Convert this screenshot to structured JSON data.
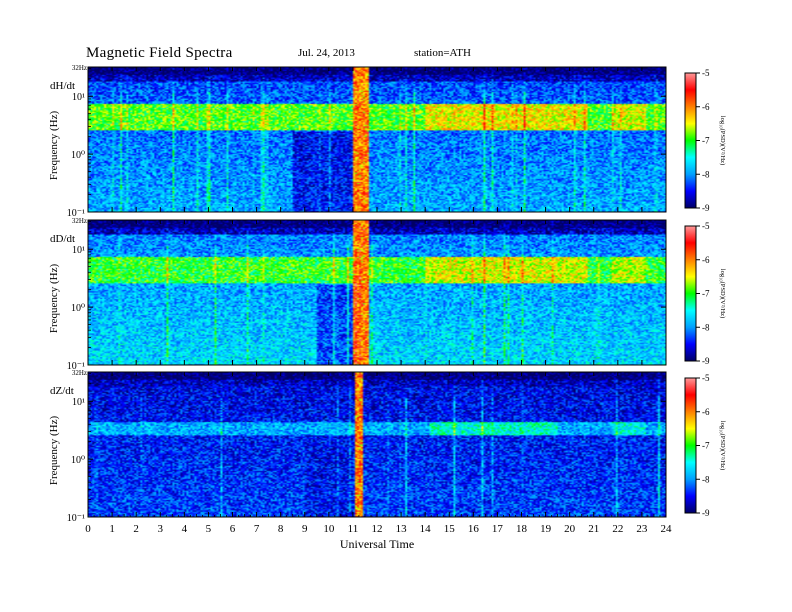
{
  "header": {
    "title": "Magnetic  Field  Spectra",
    "date": "Jul. 24, 2013",
    "station": "station=ATH"
  },
  "colors": {
    "colormap": [
      "#000066",
      "#0000ff",
      "#00a0ff",
      "#00ffff",
      "#00ff00",
      "#ffff00",
      "#ff8000",
      "#ff0000",
      "#ff9a9a"
    ]
  },
  "chart_data": {
    "type": "heatmap",
    "xlabel": "Universal Time",
    "x_ticks": [
      "0",
      "1",
      "2",
      "3",
      "4",
      "5",
      "6",
      "7",
      "8",
      "9",
      "10",
      "11",
      "12",
      "13",
      "14",
      "15",
      "16",
      "17",
      "18",
      "19",
      "20",
      "21",
      "22",
      "23",
      "24"
    ],
    "xlim": [
      0,
      24
    ],
    "grid": false,
    "panels": [
      {
        "component": "dH/dt",
        "ylabel": "Frequency (Hz)",
        "y_scale": "log",
        "ylim": [
          0.1,
          32
        ],
        "top_label": "32Hz",
        "y_ticks": [
          "10⁻¹",
          "10⁰",
          "10¹"
        ],
        "y_tick_values": [
          0.1,
          1,
          10
        ],
        "colorbar": {
          "label": "log₁₀(PSD)(V²/Hz)",
          "range": [
            -9,
            -5
          ],
          "ticks": [
            "-9",
            "-8",
            "-7",
            "-6",
            "-5"
          ]
        },
        "features": {
          "band_low_hz": 2.6,
          "band_high_hz": 7.5,
          "band_level": -6.9,
          "burst_ut": [
            11.0,
            11.7
          ],
          "active_ut": [
            14.0,
            20.8
          ],
          "bg_low": -7.9,
          "bg_high": -8.3,
          "quiet_patch_ut": [
            8.5,
            11.0
          ],
          "quiet_level": -8.8
        }
      },
      {
        "component": "dD/dt",
        "ylabel": "Frequency (Hz)",
        "y_scale": "log",
        "ylim": [
          0.1,
          32
        ],
        "top_label": "32Hz",
        "y_ticks": [
          "10⁻¹",
          "10⁰",
          "10¹"
        ],
        "y_tick_values": [
          0.1,
          1,
          10
        ],
        "colorbar": {
          "label": "log₁₀(PSD)(V²/Hz)",
          "range": [
            -9,
            -5
          ],
          "ticks": [
            "-9",
            "-8",
            "-7",
            "-6",
            "-5"
          ]
        },
        "features": {
          "band_low_hz": 2.6,
          "band_high_hz": 7.5,
          "band_level": -7.0,
          "burst_ut": [
            11.0,
            11.7
          ],
          "active_ut": [
            14.0,
            20.8
          ],
          "bg_low": -7.7,
          "bg_high": -8.1,
          "quiet_patch_ut": [
            9.5,
            11.0
          ],
          "quiet_level": -8.6
        }
      },
      {
        "component": "dZ/dt",
        "ylabel": "Frequency (Hz)",
        "y_scale": "log",
        "ylim": [
          0.1,
          32
        ],
        "top_label": "32Hz",
        "y_ticks": [
          "10⁻¹",
          "10⁰",
          "10¹"
        ],
        "y_tick_values": [
          0.1,
          1,
          10
        ],
        "colorbar": {
          "label": "log₁₀(PSD)(V²/Hz)",
          "range": [
            -9,
            -5
          ],
          "ticks": [
            "-9",
            "-8",
            "-7",
            "-6",
            "-5"
          ]
        },
        "features": {
          "band_low_hz": 2.6,
          "band_high_hz": 4.5,
          "band_level": -7.9,
          "burst_ut": [
            11.1,
            11.4
          ],
          "active_ut": [
            14.2,
            19.5
          ],
          "bg_low": -8.3,
          "bg_high": -8.6,
          "quiet_patch_ut": [
            9.0,
            11.0
          ],
          "quiet_level": -8.6
        }
      }
    ]
  }
}
